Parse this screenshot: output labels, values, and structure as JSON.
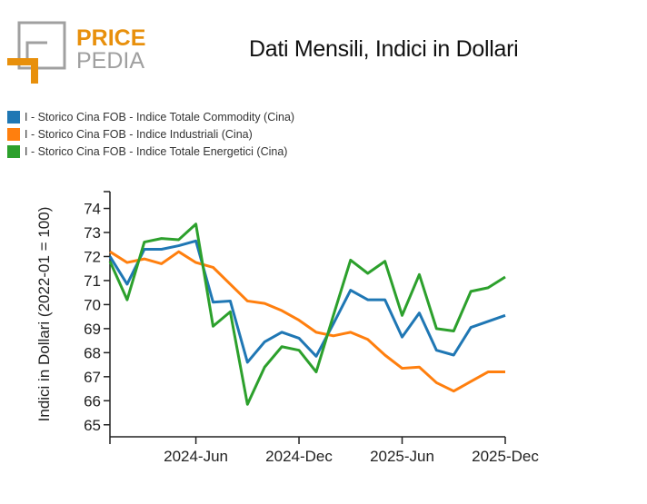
{
  "logo": {
    "text_top": "PRICE",
    "text_bottom": "PEDIA"
  },
  "chart_data": {
    "type": "line",
    "title": "Dati Mensili, Indici in Dollari",
    "ylabel": "Indici in Dollari (2022-01 = 100)",
    "xlabel": "",
    "x": [
      "2024-01",
      "2024-02",
      "2024-03",
      "2024-04",
      "2024-05",
      "2024-06",
      "2024-07",
      "2024-08",
      "2024-09",
      "2024-10",
      "2024-11",
      "2024-12",
      "2025-01",
      "2025-02",
      "2025-03",
      "2025-04",
      "2025-05",
      "2025-06",
      "2025-07",
      "2025-08",
      "2025-09",
      "2025-10",
      "2025-11",
      "2025-12"
    ],
    "xticks": [
      {
        "x": "2024-01",
        "label": ""
      },
      {
        "x": "2024-06",
        "label": "2024-Jun"
      },
      {
        "x": "2024-12",
        "label": "2024-Dec"
      },
      {
        "x": "2025-06",
        "label": "2025-Jun"
      },
      {
        "x": "2025-12",
        "label": "2025-Dec"
      }
    ],
    "yticks": [
      65,
      66,
      67,
      68,
      69,
      70,
      71,
      72,
      73,
      74
    ],
    "ylim": [
      64.5,
      74.7
    ],
    "grid": false,
    "legend_position": "top-left",
    "series": [
      {
        "name": "I - Storico Cina FOB - Indice Totale Commodity (Cina)",
        "color": "#1f77b4",
        "values": [
          72.0,
          70.85,
          72.3,
          72.3,
          72.45,
          72.65,
          70.1,
          70.15,
          67.6,
          68.45,
          68.85,
          68.6,
          67.85,
          69.2,
          70.6,
          70.2,
          70.2,
          68.65,
          69.65,
          68.1,
          67.9,
          69.05,
          69.3,
          69.55
        ]
      },
      {
        "name": "I - Storico Cina FOB - Indice Industriali (Cina)",
        "color": "#ff7f0e",
        "values": [
          72.2,
          71.75,
          71.9,
          71.7,
          72.2,
          71.75,
          71.55,
          70.85,
          70.15,
          70.05,
          69.75,
          69.35,
          68.85,
          68.7,
          68.85,
          68.55,
          67.9,
          67.35,
          67.4,
          66.75,
          66.4,
          66.8,
          67.2,
          67.2
        ]
      },
      {
        "name": "I - Storico Cina FOB - Indice Totale Energetici (Cina)",
        "color": "#2ca02c",
        "values": [
          71.8,
          70.2,
          72.6,
          72.75,
          72.7,
          73.35,
          69.1,
          69.7,
          65.85,
          67.4,
          68.25,
          68.1,
          67.2,
          69.55,
          71.85,
          71.3,
          71.8,
          69.55,
          71.25,
          69.0,
          68.9,
          70.55,
          70.7,
          71.15
        ]
      }
    ]
  }
}
